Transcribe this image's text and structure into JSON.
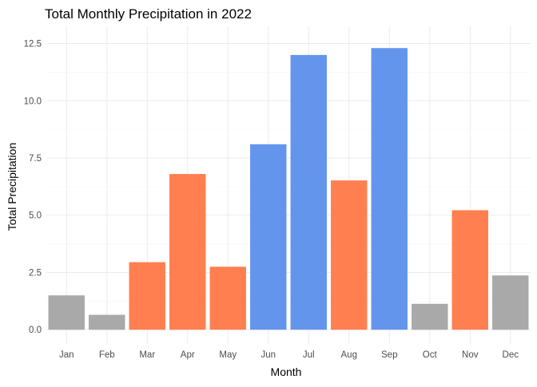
{
  "chart_data": {
    "type": "bar",
    "title": "Total Monthly Precipitation in 2022",
    "xlabel": "Month",
    "ylabel": "Total Precipitation",
    "categories": [
      "Jan",
      "Feb",
      "Mar",
      "Apr",
      "May",
      "Jun",
      "Jul",
      "Aug",
      "Sep",
      "Oct",
      "Nov",
      "Dec"
    ],
    "values": [
      1.5,
      0.65,
      2.95,
      6.8,
      2.75,
      8.1,
      12.0,
      6.52,
      12.3,
      1.13,
      5.22,
      2.37
    ],
    "bar_colors": [
      "#a9a9a9",
      "#a9a9a9",
      "#ff7f50",
      "#ff7f50",
      "#ff7f50",
      "#6495ed",
      "#6495ed",
      "#ff7f50",
      "#6495ed",
      "#a9a9a9",
      "#ff7f50",
      "#a9a9a9"
    ],
    "yticks": [
      0,
      2.5,
      5,
      7.5,
      10,
      12.5
    ],
    "ytick_labels": [
      "0.0",
      "2.5",
      "5.0",
      "7.5",
      "10.0",
      "12.5"
    ],
    "ylim": [
      -0.62,
      13.25
    ],
    "grid": true,
    "legend": false
  }
}
